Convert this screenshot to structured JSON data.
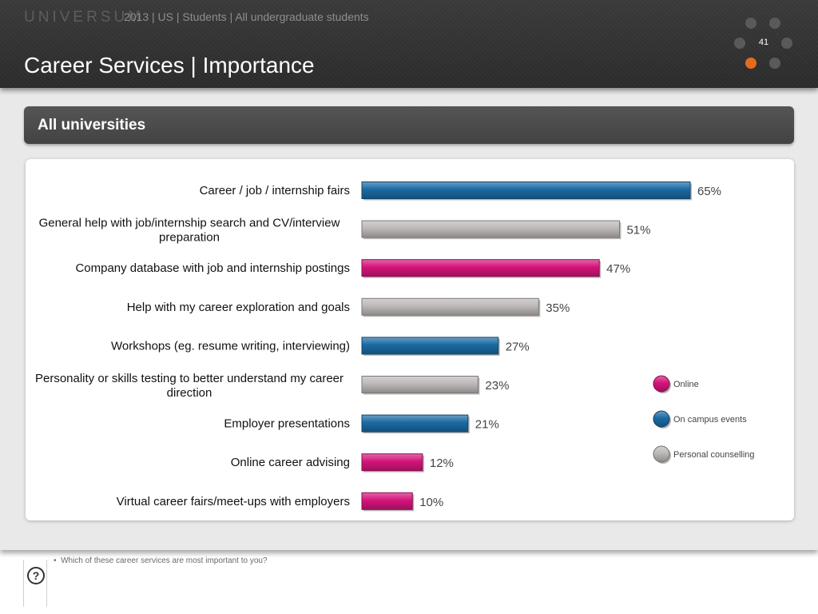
{
  "header": {
    "brand": "UNIVERSUM",
    "context": "2013 | US | Students | All undergraduate students",
    "title": "Career Services | Importance",
    "page_number": "41"
  },
  "section": {
    "title": "All universities"
  },
  "colors": {
    "Online": "#d4147a",
    "On campus events": "#1a6aa3",
    "Personal counselling": "#bdb8b8",
    "accent": "#e36b1e"
  },
  "chart_data": {
    "type": "bar",
    "orientation": "horizontal",
    "title": "All universities",
    "categories": [
      "Career / job / internship fairs",
      "General help with job/internship search and CV/interview preparation",
      "Company database with job and internship postings",
      "Help with my career exploration and goals",
      "Workshops (eg. resume writing, interviewing)",
      "Personality or skills testing to better understand my career direction",
      "Employer presentations",
      "Online career advising",
      "Virtual career fairs/meet-ups with employers"
    ],
    "values": [
      65,
      51,
      47,
      35,
      27,
      23,
      21,
      12,
      10
    ],
    "value_labels": [
      "65%",
      "51%",
      "47%",
      "35%",
      "27%",
      "23%",
      "21%",
      "12%",
      "10%"
    ],
    "groups": [
      "On campus events",
      "Personal counselling",
      "Online",
      "Personal counselling",
      "On campus events",
      "Personal counselling",
      "On campus events",
      "Online",
      "Online"
    ],
    "unit": "%",
    "xlim": [
      0,
      100
    ],
    "legend": [
      "Online",
      "On campus events",
      "Personal counselling"
    ],
    "legend_position": "right"
  },
  "footnote": "Which of these career services are most important to you?",
  "help": {
    "label": "?"
  }
}
